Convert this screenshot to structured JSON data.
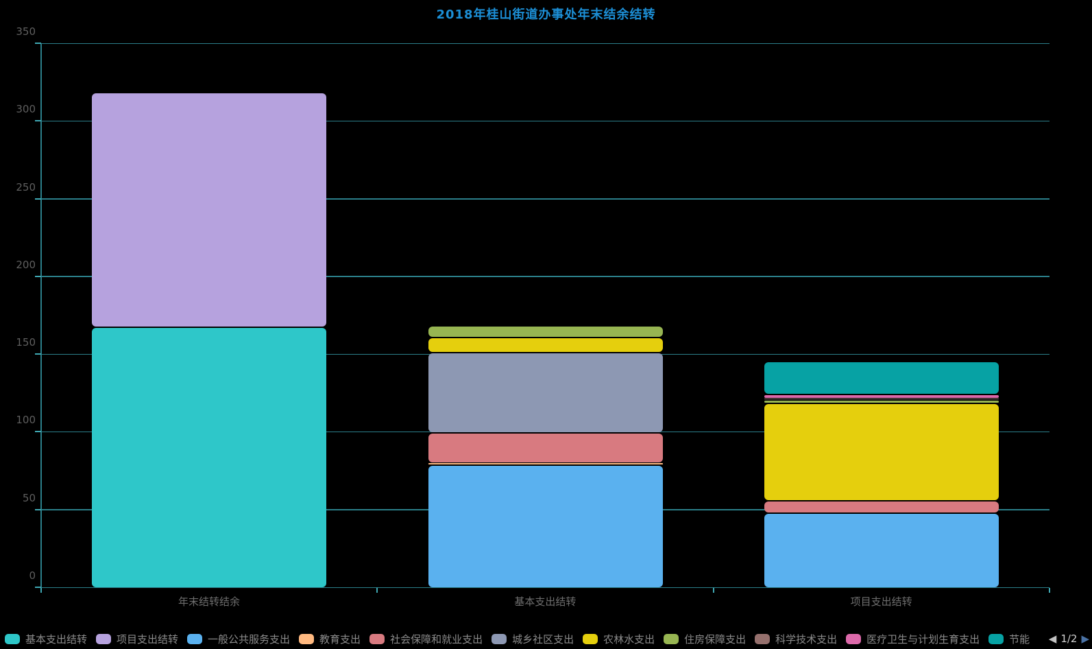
{
  "page": {
    "background": "#000000"
  },
  "chart_data": {
    "type": "bar",
    "stacked": true,
    "title": "2018年桂山街道办事处年末结余结转",
    "title_color": "#1c8fd6",
    "categories": [
      "年末结转结余",
      "基本支出结转",
      "项目支出结转"
    ],
    "xlabel": "",
    "ylabel": "",
    "ylim": [
      0,
      350
    ],
    "yticks": [
      0,
      50,
      100,
      150,
      200,
      250,
      300,
      350
    ],
    "grid": true,
    "grid_color": "#2b7f8a",
    "axis_color": "#2b7f8a",
    "tick_color": "#3fa9b4",
    "legend_position": "bottom",
    "series": [
      {
        "name": "基本支出结转",
        "color": "#2ec7c9",
        "values": [
          167.6,
          0,
          0
        ]
      },
      {
        "name": "项目支出结转",
        "color": "#b6a2de",
        "values": [
          151.1,
          0,
          0
        ]
      },
      {
        "name": "一般公共服务支出",
        "color": "#5ab1ef",
        "values": [
          0,
          79.2,
          47.9
        ]
      },
      {
        "name": "教育支出",
        "color": "#ffb980",
        "values": [
          0,
          1.3,
          0
        ]
      },
      {
        "name": "社会保障和就业支出",
        "color": "#d87a80",
        "values": [
          0,
          19.1,
          8.0
        ]
      },
      {
        "name": "城乡社区支出",
        "color": "#8d98b3",
        "values": [
          0,
          52.0,
          0
        ]
      },
      {
        "name": "农林水支出",
        "color": "#e5cf0d",
        "values": [
          0,
          9.7,
          62.7
        ]
      },
      {
        "name": "住房保障支出",
        "color": "#97b552",
        "values": [
          0,
          7.2,
          2.2
        ]
      },
      {
        "name": "科学技术支出",
        "color": "#95706d",
        "values": [
          0,
          0,
          0.9
        ]
      },
      {
        "name": "医疗卫生与计划生育支出",
        "color": "#dc69aa",
        "values": [
          0,
          0,
          2.7
        ]
      },
      {
        "name": "节能",
        "color": "#07a2a4",
        "values": [
          0,
          0,
          21.1
        ]
      }
    ]
  },
  "legend": {
    "items": [
      {
        "label": "基本支出结转",
        "color": "#2ec7c9"
      },
      {
        "label": "项目支出结转",
        "color": "#b6a2de"
      },
      {
        "label": "一般公共服务支出",
        "color": "#5ab1ef"
      },
      {
        "label": "教育支出",
        "color": "#ffb980"
      },
      {
        "label": "社会保障和就业支出",
        "color": "#d87a80"
      },
      {
        "label": "城乡社区支出",
        "color": "#8d98b3"
      },
      {
        "label": "农林水支出",
        "color": "#e5cf0d"
      },
      {
        "label": "住房保障支出",
        "color": "#97b552"
      },
      {
        "label": "科学技术支出",
        "color": "#95706d"
      },
      {
        "label": "医疗卫生与计划生育支出",
        "color": "#dc69aa"
      },
      {
        "label": "节能",
        "color": "#07a2a4"
      }
    ],
    "pager": {
      "prev_icon": "◀",
      "next_icon": "▶",
      "page": "1/2",
      "prev_color": "#c2c2c2",
      "next_color": "#4a72a5",
      "text_color": "#d0d0d0"
    }
  }
}
